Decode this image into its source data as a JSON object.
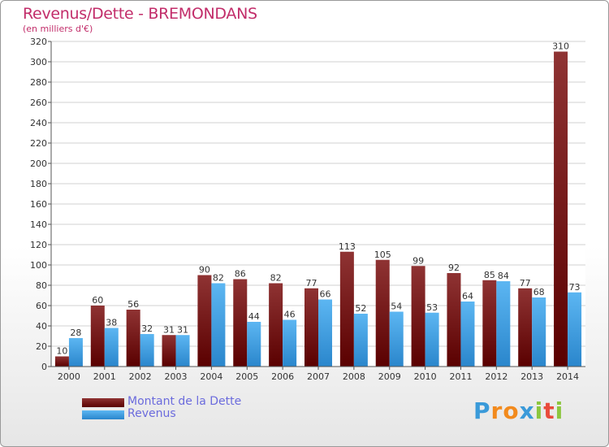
{
  "header": {
    "title": "Revenus/Dette - BREMONDANS",
    "subtitle": "(en milliers d'€)"
  },
  "legend": {
    "debt_label": "Montant de la Dette",
    "revenue_label": "Revenus"
  },
  "logo": {
    "letters": [
      "P",
      "r",
      "o",
      "x",
      "i",
      "t",
      "i"
    ],
    "colors": [
      "#3a9ad9",
      "#f28a1d",
      "#f28a1d",
      "#3a9ad9",
      "#8cc63f",
      "#e94b3c",
      "#8cc63f"
    ]
  },
  "colors": {
    "debt": "#7a1c1c",
    "revenue": "#3d9fe3"
  },
  "chart_data": {
    "type": "bar",
    "title": "Revenus/Dette - BREMONDANS",
    "subtitle": "(en milliers d'€)",
    "categories": [
      "2000",
      "2001",
      "2002",
      "2003",
      "2004",
      "2005",
      "2006",
      "2007",
      "2008",
      "2009",
      "2010",
      "2011",
      "2012",
      "2013",
      "2014"
    ],
    "series": [
      {
        "name": "Montant de la Dette",
        "values": [
          10,
          60,
          56,
          31,
          90,
          86,
          82,
          77,
          113,
          105,
          99,
          92,
          85,
          77,
          310
        ]
      },
      {
        "name": "Revenus",
        "values": [
          28,
          38,
          32,
          31,
          82,
          44,
          46,
          66,
          52,
          54,
          53,
          64,
          84,
          68,
          73
        ]
      }
    ],
    "ylim": [
      0,
      320
    ],
    "yticks": [
      0,
      20,
      40,
      60,
      80,
      100,
      120,
      140,
      160,
      180,
      200,
      220,
      240,
      260,
      280,
      300,
      320
    ],
    "grid": true,
    "legend_position": "bottom-left"
  }
}
